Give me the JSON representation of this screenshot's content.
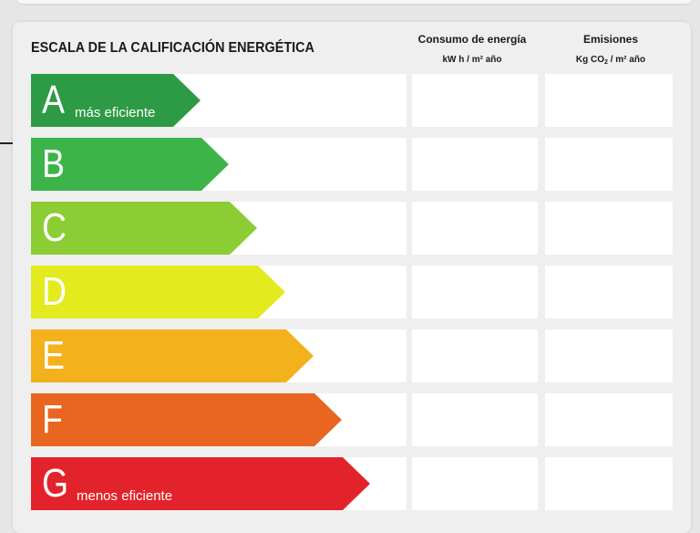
{
  "scale": {
    "title": "ESCALA DE LA CALIFICACIÓN ENERGÉTICA",
    "columns": [
      {
        "heading": "Consumo de energía",
        "unit": "kW h / m² año"
      },
      {
        "heading": "Emisiones",
        "unit_prefix": "Kg CO",
        "unit_sub": "2",
        "unit_suffix": " / m²  año"
      }
    ],
    "ratings": [
      {
        "letter": "A",
        "note": "más eficiente",
        "color": "#2d9b45"
      },
      {
        "letter": "B",
        "note": "",
        "color": "#3cb44a"
      },
      {
        "letter": "C",
        "note": "",
        "color": "#8ccc35"
      },
      {
        "letter": "D",
        "note": "",
        "color": "#e3ea1d"
      },
      {
        "letter": "E",
        "note": "",
        "color": "#f3b11c"
      },
      {
        "letter": "F",
        "note": "",
        "color": "#e8661f"
      },
      {
        "letter": "G",
        "note": "menos eficiente",
        "color": "#e3232b"
      }
    ]
  }
}
